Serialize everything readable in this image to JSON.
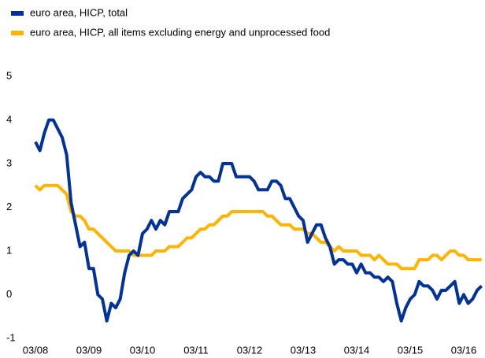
{
  "chart_data": {
    "type": "line",
    "categories": [
      "03/08",
      null,
      null,
      null,
      null,
      null,
      null,
      null,
      null,
      null,
      null,
      null,
      "03/09",
      null,
      null,
      null,
      null,
      null,
      null,
      null,
      null,
      null,
      null,
      null,
      "03/10",
      null,
      null,
      null,
      null,
      null,
      null,
      null,
      null,
      null,
      null,
      null,
      "03/11",
      null,
      null,
      null,
      null,
      null,
      null,
      null,
      null,
      null,
      null,
      null,
      "03/12",
      null,
      null,
      null,
      null,
      null,
      null,
      null,
      null,
      null,
      null,
      null,
      "03/13",
      null,
      null,
      null,
      null,
      null,
      null,
      null,
      null,
      null,
      null,
      null,
      "03/14",
      null,
      null,
      null,
      null,
      null,
      null,
      null,
      null,
      null,
      null,
      null,
      "03/15",
      null,
      null,
      null,
      null,
      null,
      null,
      null,
      null,
      null,
      null,
      null,
      "03/16",
      null,
      null,
      null,
      null
    ],
    "series": [
      {
        "name": "euro area, HICP, total",
        "color": "#003299",
        "values": [
          3.5,
          3.3,
          3.7,
          4.0,
          4.0,
          3.8,
          3.6,
          3.2,
          2.1,
          1.6,
          1.1,
          1.2,
          0.6,
          0.6,
          0.0,
          -0.1,
          -0.6,
          -0.2,
          -0.3,
          -0.1,
          0.5,
          0.9,
          1.0,
          0.9,
          1.4,
          1.5,
          1.7,
          1.5,
          1.7,
          1.6,
          1.9,
          1.9,
          1.9,
          2.2,
          2.3,
          2.4,
          2.7,
          2.8,
          2.7,
          2.7,
          2.6,
          2.6,
          3.0,
          3.0,
          3.0,
          2.7,
          2.7,
          2.7,
          2.7,
          2.6,
          2.4,
          2.4,
          2.4,
          2.6,
          2.6,
          2.5,
          2.2,
          2.2,
          2.0,
          1.8,
          1.7,
          1.2,
          1.4,
          1.6,
          1.6,
          1.3,
          1.1,
          0.7,
          0.8,
          0.8,
          0.7,
          0.7,
          0.5,
          0.7,
          0.5,
          0.5,
          0.4,
          0.4,
          0.3,
          0.4,
          0.3,
          -0.2,
          -0.6,
          -0.3,
          -0.1,
          0.0,
          0.3,
          0.2,
          0.2,
          0.1,
          -0.1,
          0.1,
          0.1,
          0.2,
          0.3,
          -0.2,
          0.0,
          -0.2,
          -0.1,
          0.1,
          0.2
        ]
      },
      {
        "name": "euro area, HICP, all items excluding energy and unprocessed food",
        "color": "#ffb400",
        "values": [
          2.5,
          2.4,
          2.5,
          2.5,
          2.5,
          2.5,
          2.4,
          2.3,
          1.9,
          1.8,
          1.8,
          1.7,
          1.5,
          1.5,
          1.4,
          1.3,
          1.2,
          1.1,
          1.0,
          1.0,
          1.0,
          1.0,
          0.9,
          0.9,
          0.9,
          0.9,
          0.9,
          1.0,
          1.0,
          1.0,
          1.1,
          1.1,
          1.1,
          1.2,
          1.3,
          1.3,
          1.4,
          1.5,
          1.5,
          1.6,
          1.6,
          1.7,
          1.8,
          1.8,
          1.9,
          1.9,
          1.9,
          1.9,
          1.9,
          1.9,
          1.9,
          1.9,
          1.8,
          1.8,
          1.7,
          1.6,
          1.6,
          1.6,
          1.5,
          1.5,
          1.5,
          1.4,
          1.4,
          1.3,
          1.2,
          1.2,
          1.1,
          1.0,
          1.1,
          1.0,
          1.0,
          1.0,
          1.0,
          0.9,
          0.9,
          0.9,
          0.8,
          0.9,
          0.8,
          0.7,
          0.7,
          0.7,
          0.6,
          0.6,
          0.6,
          0.6,
          0.8,
          0.8,
          0.8,
          0.9,
          0.9,
          0.8,
          0.9,
          1.0,
          1.0,
          0.9,
          0.9,
          0.8,
          0.8,
          0.8,
          0.8
        ]
      }
    ],
    "ylim": [
      -1,
      5
    ],
    "yticks": [
      -1,
      0,
      1,
      2,
      3,
      4,
      5
    ],
    "grid": false,
    "legend": "top-left"
  }
}
